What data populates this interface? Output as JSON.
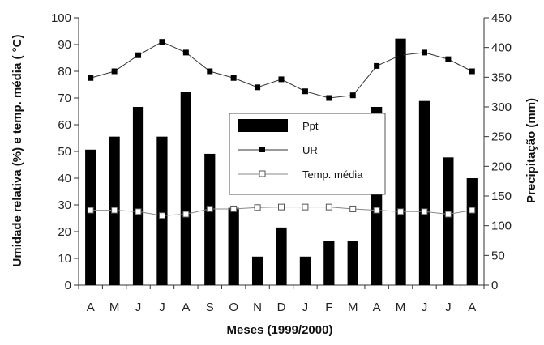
{
  "chart_data": {
    "type": "bar",
    "categories": [
      "A",
      "M",
      "J",
      "J",
      "A",
      "S",
      "O",
      "N",
      "D",
      "J",
      "F",
      "M",
      "A",
      "M",
      "J",
      "J",
      "A"
    ],
    "xlabel": "Meses (1999/2000)",
    "ylabel_left": "Umidade relativa (%) e temp. média ( °C)",
    "ylabel_right": "Precipitação (mm)",
    "ylim_left": [
      0,
      100
    ],
    "ylim_right": [
      0,
      450
    ],
    "yticks_left": [
      0,
      10,
      20,
      30,
      40,
      50,
      60,
      70,
      80,
      90,
      100
    ],
    "yticks_right": [
      0,
      50,
      100,
      150,
      200,
      250,
      300,
      350,
      400,
      450
    ],
    "grid": false,
    "legend_position": "center",
    "series": [
      {
        "name": "Ppt",
        "kind": "bar",
        "axis": "right",
        "color": "#000000",
        "values": [
          228,
          250,
          300,
          250,
          325,
          221,
          130,
          48,
          97,
          48,
          74,
          74,
          300,
          415,
          310,
          215,
          180
        ]
      },
      {
        "name": "UR",
        "kind": "line",
        "axis": "left",
        "marker": "filled-square",
        "color": "#333333",
        "values": [
          77.5,
          80,
          86,
          91,
          87,
          80,
          77.5,
          74,
          77,
          72.5,
          70,
          71,
          82,
          86,
          87,
          84.5,
          80
        ]
      },
      {
        "name": "Temp. média",
        "kind": "line",
        "axis": "left",
        "marker": "open-square",
        "color": "#888888",
        "values": [
          28,
          28,
          27.5,
          26,
          26.5,
          28.5,
          28.5,
          29,
          29.2,
          29.2,
          29.2,
          28.5,
          28,
          27.5,
          27.5,
          26.5,
          28
        ]
      }
    ]
  }
}
